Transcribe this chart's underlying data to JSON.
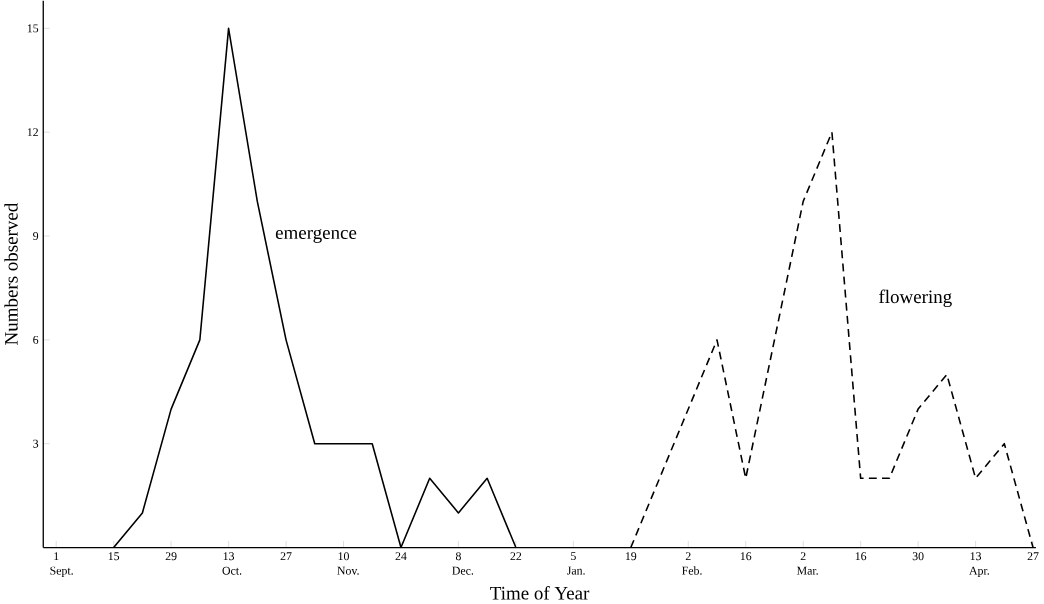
{
  "chart_data": {
    "type": "line",
    "xlabel": "Time of Year",
    "ylabel": "Numbers observed",
    "categories": [
      "1 Sept.",
      null,
      "15",
      null,
      "29",
      null,
      "13 Oct.",
      null,
      "27",
      null,
      "10 Nov.",
      null,
      "24",
      null,
      "8 Dec.",
      null,
      "22",
      null,
      "5 Jan.",
      null,
      "19",
      null,
      "2 Feb.",
      null,
      "16",
      null,
      "2 Mar.",
      null,
      "16",
      null,
      "30",
      null,
      "13 Apr.",
      null,
      "27"
    ],
    "ylim": [
      0,
      15.8
    ],
    "yticks": [
      3,
      6,
      9,
      12,
      15
    ],
    "grid": false,
    "legend": false,
    "marker": "none",
    "series": [
      {
        "name": "emergence",
        "color": "#000000",
        "line_style": "solid",
        "values": [
          null,
          null,
          0,
          1,
          4,
          6,
          15,
          10,
          6,
          3,
          3,
          3,
          0,
          2,
          1,
          2,
          0,
          null,
          null,
          null,
          null,
          null,
          null,
          null,
          null,
          null,
          null,
          null,
          null,
          null,
          null,
          null,
          null,
          null,
          null
        ]
      },
      {
        "name": "flowering",
        "color": "#000000",
        "line_style": "dashed",
        "values": [
          null,
          null,
          null,
          null,
          null,
          null,
          null,
          null,
          null,
          null,
          null,
          null,
          null,
          null,
          null,
          null,
          null,
          null,
          null,
          null,
          0,
          2,
          4,
          6,
          2,
          6,
          10,
          12,
          2,
          2,
          4,
          5,
          2,
          3,
          0
        ]
      }
    ]
  }
}
